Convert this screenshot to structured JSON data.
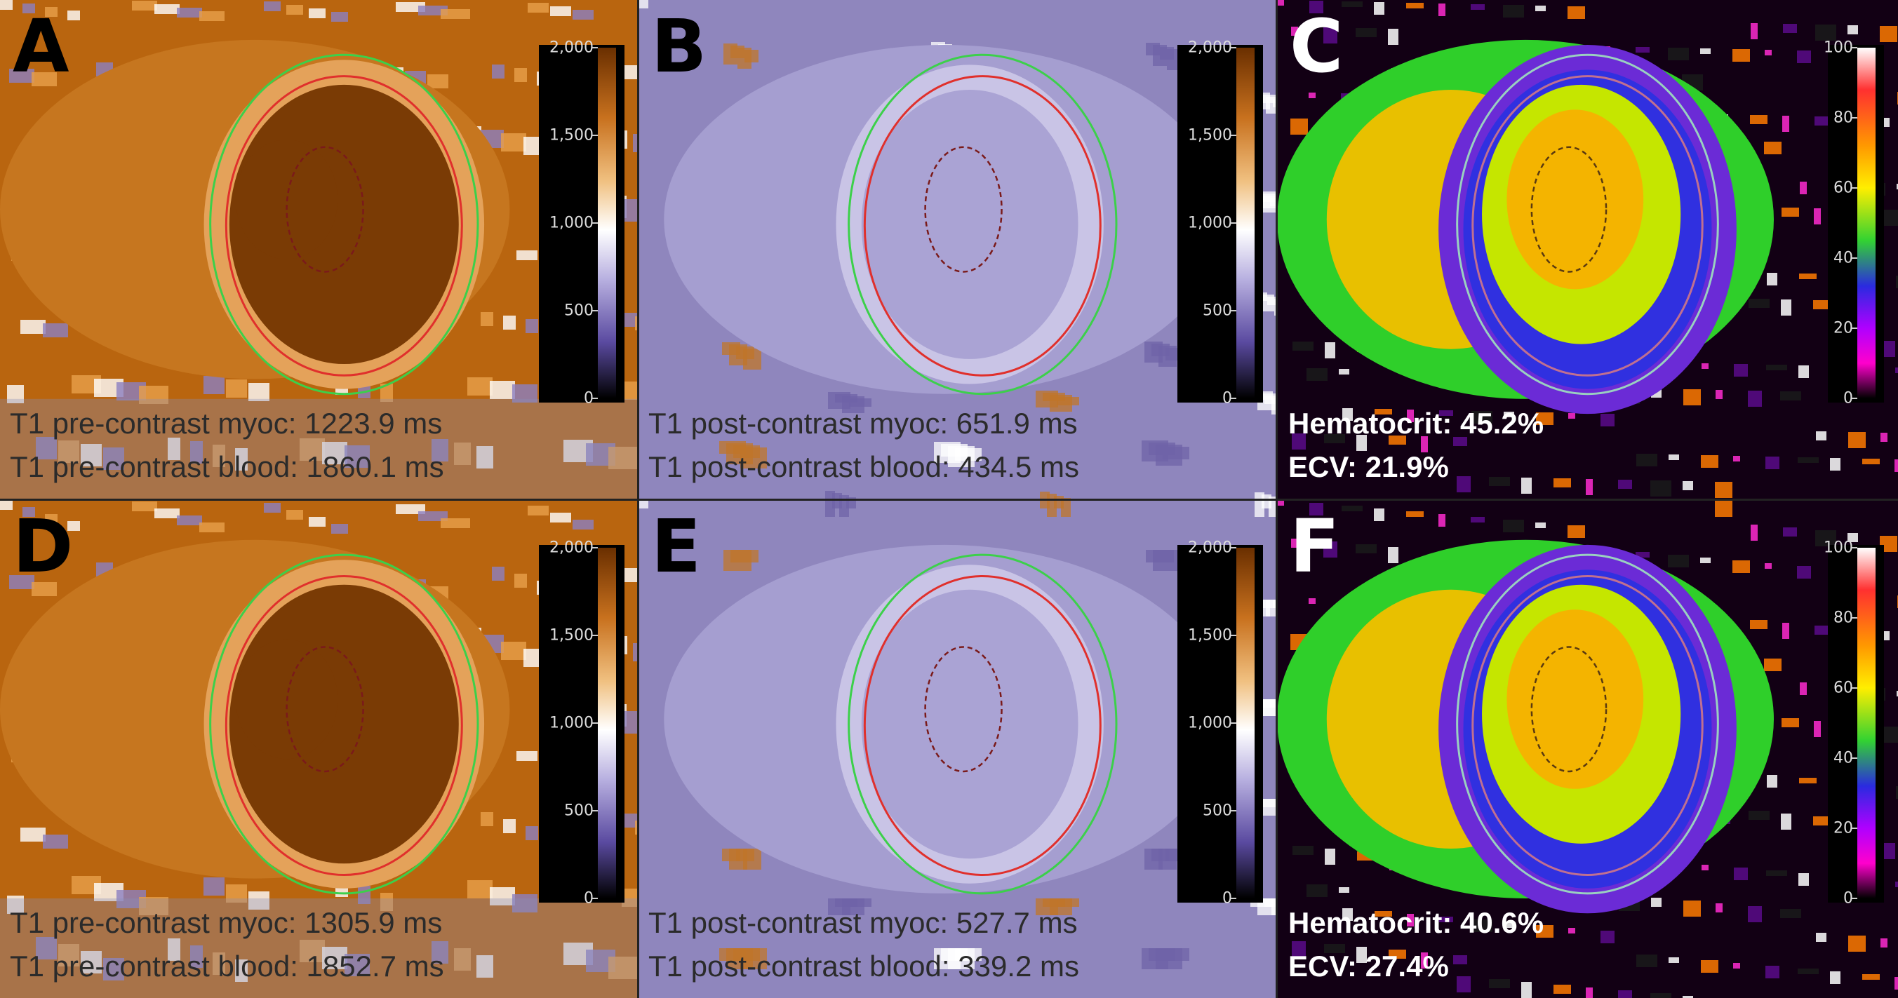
{
  "panels": [
    {
      "letter": "A",
      "captions": [
        "T1 pre-contrast myoc: 1223.9 ms",
        "T1 pre-contrast blood: 1860.1 ms"
      ],
      "scale_ticks": [
        "2,000",
        "1,500",
        "1,000",
        "500",
        "0"
      ],
      "scale_type": "t1"
    },
    {
      "letter": "B",
      "captions": [
        "T1 post-contrast myoc: 651.9 ms",
        "T1 post-contrast blood: 434.5 ms"
      ],
      "scale_ticks": [
        "2,000",
        "1,500",
        "1,000",
        "500",
        "0"
      ],
      "scale_type": "t1"
    },
    {
      "letter": "C",
      "captions": [
        "Hematocrit: 45.2%",
        "ECV: 21.9%"
      ],
      "scale_ticks": [
        "100",
        "80",
        "60",
        "40",
        "20",
        "0"
      ],
      "scale_type": "ecv"
    },
    {
      "letter": "D",
      "captions": [
        "T1 pre-contrast myoc: 1305.9 ms",
        "T1 pre-contrast blood: 1852.7 ms"
      ],
      "scale_ticks": [
        "2,000",
        "1,500",
        "1,000",
        "500",
        "0"
      ],
      "scale_type": "t1"
    },
    {
      "letter": "E",
      "captions": [
        "T1 post-contrast myoc: 527.7 ms",
        "T1 post-contrast blood: 339.2 ms"
      ],
      "scale_ticks": [
        "2,000",
        "1,500",
        "1,000",
        "500",
        "0"
      ],
      "scale_type": "t1"
    },
    {
      "letter": "F",
      "captions": [
        "Hematocrit: 40.6%",
        "ECV: 27.4%"
      ],
      "scale_ticks": [
        "100",
        "80",
        "60",
        "40",
        "20",
        "0"
      ],
      "scale_type": "ecv"
    }
  ],
  "colors": {
    "pre_contrast_orange": "#b85c0e",
    "pre_contrast_dark": "#7a3b05",
    "post_contrast_lavender": "#9c93c9",
    "epicardial_contour": "#3cd04a",
    "endocardial_contour": "#e0302c",
    "blood_pool_contour": "#7a1a1a",
    "ecv_yellow": "#f5c400",
    "ecv_green": "#3cd23c",
    "ecv_blue": "#3838e0"
  }
}
